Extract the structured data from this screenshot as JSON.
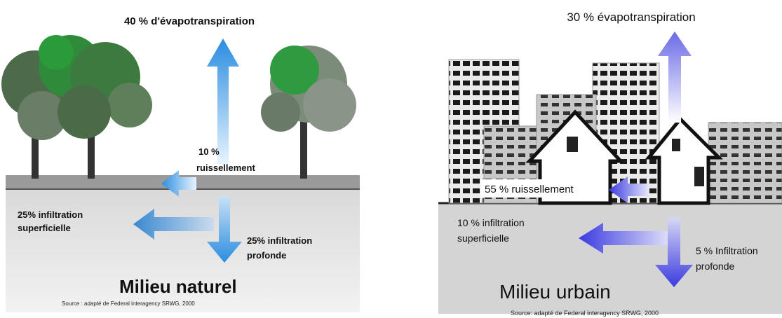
{
  "natural": {
    "evapotranspiration": "40 % d'évapotranspiration",
    "runoff": [
      "10 %",
      "ruissellement"
    ],
    "shallow_infiltration": [
      "25% infiltration",
      "superficielle"
    ],
    "deep_infiltration": [
      "25% infiltration",
      "profonde"
    ],
    "title": "Milieu naturel",
    "source": "Source : adapté de Federal interagency SRWG, 2000"
  },
  "urban": {
    "evapotranspiration": "30 % évapotranspiration",
    "runoff": "55 % ruissellement",
    "shallow_infiltration": [
      "10 % infiltration",
      "superficielle"
    ],
    "deep_infiltration": [
      "5 % Infiltration",
      "profonde"
    ],
    "title": "Milieu urbain",
    "source": "Source: adapté de Federal interagency SRWG, 2000"
  }
}
